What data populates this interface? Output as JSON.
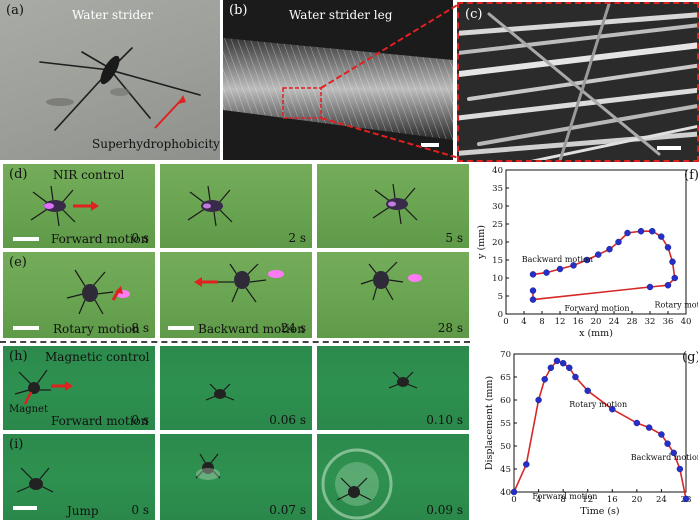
{
  "panels": {
    "a": {
      "label": "(a)",
      "title": "Water strider",
      "annotation": "Superhydrophobicity"
    },
    "b": {
      "label": "(b)",
      "title": "Water strider leg"
    },
    "c": {
      "label": "(c)"
    },
    "d": {
      "label": "(d)",
      "title": "NIR control",
      "caption": "Forward motion",
      "times": [
        "0 s",
        "2 s",
        "5 s"
      ]
    },
    "e": {
      "label": "(e)",
      "captions": [
        "Rotary motion",
        "Backward motion",
        ""
      ],
      "times": [
        "8 s",
        "24 s",
        "28 s"
      ]
    },
    "h": {
      "label": "(h)",
      "title": "Magnetic control",
      "caption": "Forward motion",
      "magnet": "Magnet",
      "times": [
        "0 s",
        "0.06 s",
        "0.10 s"
      ]
    },
    "i": {
      "label": "(i)",
      "caption": "Jump",
      "times": [
        "0 s",
        "0.07 s",
        "0.09 s"
      ]
    },
    "f": {
      "label": "(f)"
    },
    "g": {
      "label": "(g)"
    }
  },
  "chart_data": [
    {
      "type": "scatter",
      "panel": "f",
      "xlabel": "x (mm)",
      "ylabel": "y (mm)",
      "xlim": [
        0,
        40
      ],
      "ylim": [
        0,
        40
      ],
      "xticks": [
        0,
        4,
        8,
        12,
        16,
        20,
        24,
        28,
        32,
        36,
        40
      ],
      "yticks": [
        0,
        5,
        10,
        15,
        20,
        25,
        30,
        35,
        40
      ],
      "annotations": [
        "Backward motion",
        "Forward motion",
        "Rotary motion"
      ],
      "line_color": "#d62828",
      "marker_color": "#2430c8",
      "x": [
        6,
        9,
        12,
        15,
        18,
        20.5,
        23,
        25,
        27,
        30,
        32.5,
        34.5,
        36,
        37,
        37.5,
        36,
        32,
        6,
        6
      ],
      "y": [
        11,
        11.5,
        12.5,
        13.5,
        15,
        16.5,
        18,
        20,
        22.5,
        23,
        23,
        21.5,
        18.5,
        14.5,
        10,
        8,
        7.5,
        4,
        6.5
      ]
    },
    {
      "type": "line",
      "panel": "g",
      "xlabel": "Time (s)",
      "ylabel": "Displacement (mm)",
      "xlim": [
        0,
        28
      ],
      "ylim": [
        40,
        70
      ],
      "xticks": [
        0,
        4,
        8,
        12,
        16,
        20,
        24,
        28
      ],
      "yticks": [
        40,
        45,
        50,
        55,
        60,
        65,
        70
      ],
      "annotations": [
        "Rotary motion",
        "Forward motion",
        "Backward motion"
      ],
      "line_color": "#d62828",
      "marker_color": "#2430c8",
      "x": [
        0,
        2,
        4,
        5,
        6,
        7,
        8,
        9,
        10,
        12,
        16,
        20,
        22,
        24,
        25,
        26,
        27,
        28
      ],
      "y": [
        40,
        46,
        60,
        64.5,
        67,
        68.5,
        68,
        67,
        65,
        62,
        58,
        55,
        54,
        52.5,
        50.5,
        48.5,
        45,
        38.5
      ]
    }
  ]
}
